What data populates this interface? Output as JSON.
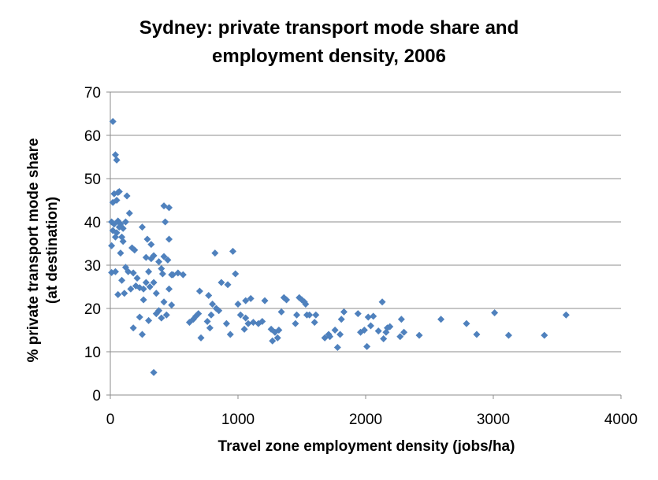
{
  "chart_data": {
    "type": "scatter",
    "title_lines": [
      "Sydney: private transport mode share and",
      "employment density, 2006"
    ],
    "xlabel": "Travel zone employment density (jobs/ha)",
    "ylabel_lines": [
      "% private transport mode share",
      "(at destination)"
    ],
    "xlim": [
      0,
      4000
    ],
    "ylim": [
      0,
      70
    ],
    "xticks": [
      "0",
      "1000",
      "2000",
      "3000",
      "4000"
    ],
    "yticks": [
      "0",
      "10",
      "20",
      "30",
      "40",
      "50",
      "60",
      "70"
    ],
    "grid": "horizontal",
    "legend": "none",
    "marker_color": "#4f81bd",
    "marker_shape": "diamond",
    "points": [
      [
        20,
        63.2
      ],
      [
        40,
        55.5
      ],
      [
        50,
        54.3
      ],
      [
        30,
        46.5
      ],
      [
        50,
        45.0
      ],
      [
        60,
        46.8
      ],
      [
        70,
        47.0
      ],
      [
        130,
        46.0
      ],
      [
        20,
        44.5
      ],
      [
        10,
        40.0
      ],
      [
        30,
        39.5
      ],
      [
        60,
        40.2
      ],
      [
        80,
        39.5
      ],
      [
        100,
        38.5
      ],
      [
        120,
        40.0
      ],
      [
        150,
        42.0
      ],
      [
        20,
        38.0
      ],
      [
        50,
        37.5
      ],
      [
        70,
        38.8
      ],
      [
        90,
        36.5
      ],
      [
        40,
        36.5
      ],
      [
        10,
        34.5
      ],
      [
        100,
        35.5
      ],
      [
        80,
        32.8
      ],
      [
        170,
        34.0
      ],
      [
        190,
        33.5
      ],
      [
        250,
        38.8
      ],
      [
        290,
        36.0
      ],
      [
        320,
        34.8
      ],
      [
        340,
        32.2
      ],
      [
        120,
        29.5
      ],
      [
        140,
        28.5
      ],
      [
        180,
        28.2
      ],
      [
        210,
        27.0
      ],
      [
        10,
        28.3
      ],
      [
        40,
        28.5
      ],
      [
        90,
        26.5
      ],
      [
        60,
        23.2
      ],
      [
        110,
        23.5
      ],
      [
        160,
        24.5
      ],
      [
        200,
        25.2
      ],
      [
        230,
        24.8
      ],
      [
        260,
        24.5
      ],
      [
        280,
        26.0
      ],
      [
        300,
        28.5
      ],
      [
        310,
        25.0
      ],
      [
        340,
        26.0
      ],
      [
        280,
        31.8
      ],
      [
        320,
        31.5
      ],
      [
        380,
        30.8
      ],
      [
        400,
        29.2
      ],
      [
        420,
        32.0
      ],
      [
        450,
        31.2
      ],
      [
        410,
        28.0
      ],
      [
        420,
        43.7
      ],
      [
        460,
        43.3
      ],
      [
        430,
        40.0
      ],
      [
        460,
        36.0
      ],
      [
        490,
        27.8
      ],
      [
        530,
        28.2
      ],
      [
        570,
        27.8
      ],
      [
        460,
        24.5
      ],
      [
        480,
        20.8
      ],
      [
        420,
        21.5
      ],
      [
        380,
        19.5
      ],
      [
        360,
        18.8
      ],
      [
        400,
        17.8
      ],
      [
        440,
        18.5
      ],
      [
        230,
        18.0
      ],
      [
        260,
        22.0
      ],
      [
        300,
        17.2
      ],
      [
        180,
        15.5
      ],
      [
        250,
        14.0
      ],
      [
        340,
        5.2
      ],
      [
        480,
        27.8
      ],
      [
        360,
        23.5
      ],
      [
        620,
        16.8
      ],
      [
        650,
        17.5
      ],
      [
        670,
        18.2
      ],
      [
        690,
        18.8
      ],
      [
        700,
        24.0
      ],
      [
        710,
        13.2
      ],
      [
        760,
        17.0
      ],
      [
        780,
        15.5
      ],
      [
        770,
        23.0
      ],
      [
        800,
        21.0
      ],
      [
        790,
        18.5
      ],
      [
        830,
        20.0
      ],
      [
        820,
        32.8
      ],
      [
        850,
        19.5
      ],
      [
        870,
        26.0
      ],
      [
        910,
        16.5
      ],
      [
        920,
        25.5
      ],
      [
        940,
        14.0
      ],
      [
        960,
        33.2
      ],
      [
        980,
        28.0
      ],
      [
        1000,
        21.0
      ],
      [
        1020,
        18.5
      ],
      [
        1050,
        15.2
      ],
      [
        1060,
        17.8
      ],
      [
        1060,
        21.8
      ],
      [
        1080,
        16.5
      ],
      [
        1100,
        22.3
      ],
      [
        1120,
        16.8
      ],
      [
        1160,
        16.5
      ],
      [
        1190,
        17.0
      ],
      [
        1210,
        21.8
      ],
      [
        1260,
        15.2
      ],
      [
        1270,
        12.5
      ],
      [
        1290,
        14.5
      ],
      [
        1310,
        13.2
      ],
      [
        1320,
        15.0
      ],
      [
        1340,
        19.2
      ],
      [
        1360,
        22.5
      ],
      [
        1380,
        22.0
      ],
      [
        1450,
        16.5
      ],
      [
        1460,
        18.5
      ],
      [
        1480,
        22.5
      ],
      [
        1500,
        22.0
      ],
      [
        1520,
        21.5
      ],
      [
        1530,
        21.0
      ],
      [
        1540,
        18.5
      ],
      [
        1560,
        18.5
      ],
      [
        1600,
        16.8
      ],
      [
        1610,
        18.5
      ],
      [
        1680,
        13.2
      ],
      [
        1710,
        14.0
      ],
      [
        1720,
        13.5
      ],
      [
        1760,
        15.0
      ],
      [
        1780,
        11.0
      ],
      [
        1800,
        14.0
      ],
      [
        1810,
        17.5
      ],
      [
        1830,
        19.2
      ],
      [
        1940,
        18.8
      ],
      [
        1960,
        14.5
      ],
      [
        1990,
        15.0
      ],
      [
        2010,
        11.2
      ],
      [
        2020,
        18.0
      ],
      [
        2040,
        16.0
      ],
      [
        2060,
        18.2
      ],
      [
        2100,
        14.8
      ],
      [
        2130,
        21.5
      ],
      [
        2140,
        13.0
      ],
      [
        2160,
        14.5
      ],
      [
        2170,
        15.5
      ],
      [
        2190,
        15.8
      ],
      [
        2270,
        13.5
      ],
      [
        2280,
        17.5
      ],
      [
        2300,
        14.5
      ],
      [
        2420,
        13.8
      ],
      [
        2590,
        17.5
      ],
      [
        2790,
        16.5
      ],
      [
        2870,
        14.0
      ],
      [
        3010,
        19.0
      ],
      [
        3120,
        13.8
      ],
      [
        3400,
        13.8
      ],
      [
        3570,
        18.5
      ]
    ]
  }
}
